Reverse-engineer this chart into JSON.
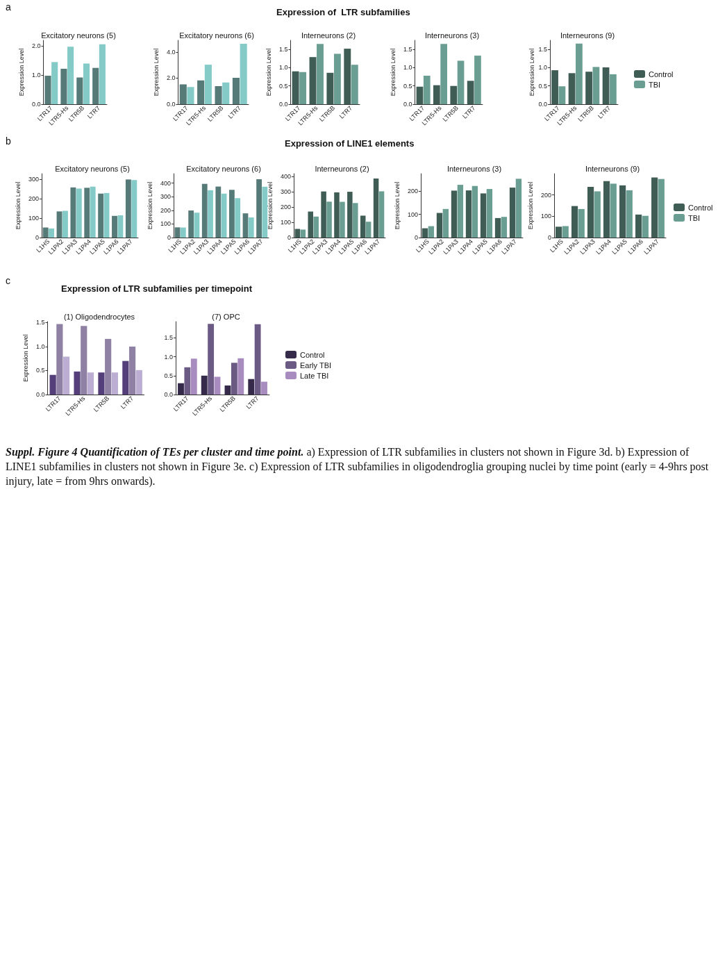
{
  "chart_data": [
    {
      "type": "other",
      "title": "Expression of  LTR subfamilies",
      "annotations": [
        "a"
      ]
    },
    {
      "type": "bar",
      "title": "Excitatory neurons (5)",
      "ylabel": "Expression Level",
      "categories": [
        "LTR17",
        "LTR5-Hs",
        "LTR5B",
        "LTR7"
      ],
      "ylim": [
        0,
        2.2
      ],
      "yticks": [
        {
          "value": 0,
          "label": "0.0"
        },
        {
          "value": 1,
          "label": "1.0"
        },
        {
          "value": 2,
          "label": "2.0"
        }
      ],
      "series": [
        {
          "color": "#567a78",
          "values": [
            0.98,
            1.22,
            0.92,
            1.25
          ]
        },
        {
          "color": "#84cbc8",
          "values": [
            1.45,
            1.98,
            1.4,
            2.06
          ]
        }
      ]
    },
    {
      "type": "bar",
      "title": "Excitatory neurons (6)",
      "ylabel": "Expression Level",
      "categories": [
        "LTR17",
        "LTR5-Hs",
        "LTR5B",
        "LTR7"
      ],
      "ylim": [
        0,
        4.9
      ],
      "yticks": [
        {
          "value": 0,
          "label": "0.0"
        },
        {
          "value": 2,
          "label": "2.0"
        },
        {
          "value": 4,
          "label": "4.0"
        }
      ],
      "series": [
        {
          "color": "#567a78",
          "values": [
            1.52,
            1.83,
            1.38,
            2.02
          ]
        },
        {
          "color": "#84cbc8",
          "values": [
            1.32,
            3.03,
            1.66,
            4.64
          ]
        }
      ]
    },
    {
      "type": "bar",
      "title": "Interneurons (2)",
      "ylabel": "Expression Level",
      "categories": [
        "LTR17",
        "LTR5-Hs",
        "LTR5B",
        "LTR7"
      ],
      "ylim": [
        0,
        1.75
      ],
      "yticks": [
        {
          "value": 0,
          "label": "0.0"
        },
        0.5,
        {
          "value": 1,
          "label": "1.0"
        },
        1.5
      ],
      "series": [
        {
          "color": "#3f5c55",
          "values": [
            0.9,
            1.29,
            0.86,
            1.52
          ]
        },
        {
          "color": "#6b9e92",
          "values": [
            0.88,
            1.65,
            1.38,
            1.08
          ]
        }
      ]
    },
    {
      "type": "bar",
      "title": "Interneurons (3)",
      "ylabel": "Expression Level",
      "categories": [
        "LTR17",
        "LTR5-Hs",
        "LTR5B",
        "LTR7"
      ],
      "ylim": [
        0,
        1.75
      ],
      "yticks": [
        {
          "value": 0,
          "label": "0.0"
        },
        0.5,
        {
          "value": 1,
          "label": "1.0"
        },
        1.5
      ],
      "series": [
        {
          "color": "#3f5c55",
          "values": [
            0.48,
            0.52,
            0.5,
            0.64
          ]
        },
        {
          "color": "#6b9e92",
          "values": [
            0.78,
            1.65,
            1.19,
            1.33
          ]
        }
      ]
    },
    {
      "type": "bar",
      "title": "Interneurons (9)",
      "ylabel": "Expression Level",
      "categories": [
        "LTR17",
        "LTR5-Hs",
        "LTR5B",
        "LTR7"
      ],
      "ylim": [
        0,
        1.75
      ],
      "yticks": [
        {
          "value": 0,
          "label": "0.0"
        },
        0.5,
        {
          "value": 1,
          "label": "1.0"
        },
        1.5
      ],
      "legend": "right",
      "series": [
        {
          "name": "Control",
          "color": "#3f5c55",
          "values": [
            0.93,
            0.85,
            0.89,
            1.01
          ]
        },
        {
          "name": "TBI",
          "color": "#6b9e92",
          "values": [
            0.49,
            1.66,
            1.02,
            0.82
          ]
        }
      ]
    },
    {
      "type": "other",
      "title": "Expression of LINE1 elements",
      "annotations": [
        "b"
      ]
    },
    {
      "type": "bar",
      "title": "Excitatory neurons (5)",
      "ylabel": "Expression Level",
      "categories": [
        "L1HS",
        "L1PA2",
        "L1PA3",
        "L1PA4",
        "L1PA5",
        "L1PA6",
        "L1PA7"
      ],
      "ylim": [
        0,
        330
      ],
      "yticks": [
        0,
        100,
        200,
        300
      ],
      "series": [
        {
          "color": "#567a78",
          "values": [
            52,
            135,
            259,
            257,
            227,
            112,
            300
          ]
        },
        {
          "color": "#84cbc8",
          "values": [
            47,
            138,
            253,
            263,
            230,
            115,
            297
          ]
        }
      ]
    },
    {
      "type": "bar",
      "title": "Excitatory neurons (6)",
      "ylabel": "Expression Level",
      "categories": [
        "L1HS",
        "L1PA2",
        "L1PA3",
        "L1PA4",
        "L1PA5",
        "L1PA6",
        "L1PA7"
      ],
      "ylim": [
        0,
        470
      ],
      "yticks": [
        0,
        100,
        200,
        300,
        400
      ],
      "series": [
        {
          "color": "#567a78",
          "values": [
            75,
            199,
            395,
            375,
            351,
            178,
            429
          ]
        },
        {
          "color": "#84cbc8",
          "values": [
            74,
            183,
            348,
            323,
            290,
            148,
            374
          ]
        }
      ]
    },
    {
      "type": "bar",
      "title": "Interneurons (2)",
      "ylabel": "Expression Level",
      "categories": [
        "L1HS",
        "L1PA2",
        "L1PA3",
        "L1PA4",
        "L1PA5",
        "L1PA6",
        "L1PA7"
      ],
      "ylim": [
        0,
        420
      ],
      "yticks": [
        0,
        100,
        200,
        300,
        400
      ],
      "series": [
        {
          "color": "#3f5c55",
          "values": [
            57,
            171,
            303,
            297,
            301,
            144,
            388
          ]
        },
        {
          "color": "#6b9e92",
          "values": [
            52,
            138,
            236,
            235,
            227,
            104,
            304
          ]
        }
      ]
    },
    {
      "type": "bar",
      "title": "Interneurons (3)",
      "ylabel": "Expression Level",
      "categories": [
        "L1HS",
        "L1PA2",
        "L1PA3",
        "L1PA4",
        "L1PA5",
        "L1PA6",
        "L1PA7"
      ],
      "ylim": [
        0,
        275
      ],
      "yticks": [
        0,
        100,
        200
      ],
      "series": [
        {
          "color": "#3f5c55",
          "values": [
            40,
            106,
            202,
            203,
            190,
            84,
            215
          ]
        },
        {
          "color": "#6b9e92",
          "values": [
            49,
            123,
            227,
            222,
            209,
            89,
            253
          ]
        }
      ]
    },
    {
      "type": "bar",
      "title": "Interneurons (9)",
      "ylabel": "Expression Level",
      "categories": [
        "L1HS",
        "L1PA2",
        "L1PA3",
        "L1PA4",
        "L1PA5",
        "L1PA6",
        "L1PA7"
      ],
      "ylim": [
        0,
        300
      ],
      "yticks": [
        0,
        100,
        200
      ],
      "legend": "right",
      "series": [
        {
          "name": "Control",
          "color": "#3f5c55",
          "values": [
            51,
            148,
            238,
            265,
            245,
            108,
            282
          ]
        },
        {
          "name": "TBI",
          "color": "#6b9e92",
          "values": [
            54,
            134,
            217,
            253,
            222,
            102,
            275
          ]
        }
      ]
    },
    {
      "type": "other",
      "title": "Expression of LTR subfamilies per timepoint",
      "annotations": [
        "c"
      ]
    },
    {
      "type": "bar",
      "title": "(1) Oligodendrocytes",
      "ylabel": "Expression Level",
      "categories": [
        "LTR17",
        "LTR5-Hs",
        "LTR5B",
        "LTR7"
      ],
      "ylim": [
        0,
        1.52
      ],
      "yticks": [
        {
          "value": 0,
          "label": "0.0"
        },
        0.5,
        {
          "value": 1,
          "label": "1.0"
        },
        1.5
      ],
      "series": [
        {
          "color": "#553f7b",
          "values": [
            0.41,
            0.48,
            0.46,
            0.7
          ]
        },
        {
          "color": "#8e81a3",
          "values": [
            1.47,
            1.43,
            1.16,
            1.0
          ]
        },
        {
          "color": "#bcaed2",
          "values": [
            0.79,
            0.46,
            0.46,
            0.51
          ]
        }
      ]
    },
    {
      "type": "bar",
      "title": "(7) OPC",
      "categories": [
        "LTR17",
        "LTR5-Hs",
        "LTR5B",
        "LTR7"
      ],
      "ylim": [
        0,
        1.93
      ],
      "yticks": [
        {
          "value": 0,
          "label": "0.0"
        },
        0.5,
        {
          "value": 1,
          "label": "1.0"
        },
        1.5
      ],
      "legend": "right",
      "series": [
        {
          "name": "Control",
          "color": "#352a4a",
          "values": [
            0.3,
            0.5,
            0.24,
            0.41
          ]
        },
        {
          "name": "Early TBI",
          "color": "#6a5a84",
          "values": [
            0.72,
            1.87,
            0.84,
            1.86
          ]
        },
        {
          "name": "Late TBI",
          "color": "#a98cbf",
          "values": [
            0.95,
            0.47,
            0.96,
            0.34
          ]
        }
      ]
    },
    {
      "type": "other",
      "title": "Suppl. Figure 4 Quantification of TEs per cluster and time point.",
      "annotations": [
        "a) Expression of LTR subfamilies in clusters not shown in Figure 3d. b) Expression of LINE1 subfamilies in clusters not shown in Figure 3e. c) Expression of LTR subfamilies in oligodendroglia grouping nuclei by time point (early = 4-9hrs post injury, late = from 9hrs onwards)."
      ]
    }
  ]
}
